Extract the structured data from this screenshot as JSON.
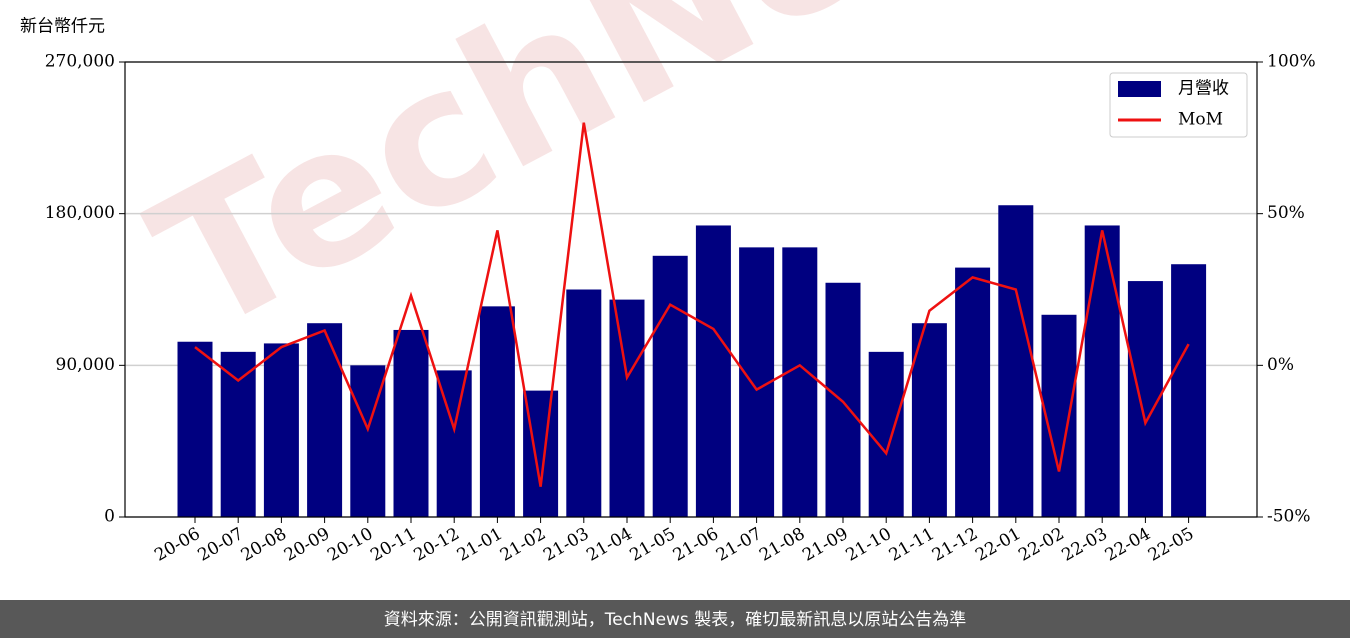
{
  "chart_data": {
    "type": "bar_line",
    "y_label": "新台幣仟元",
    "watermark": "TechNews",
    "footer": "資料來源：公開資訊觀測站，TechNews 製表，確切最新訊息以原站公告為準",
    "categories": [
      "20-06",
      "20-07",
      "20-08",
      "20-09",
      "20-10",
      "20-11",
      "20-12",
      "21-01",
      "21-02",
      "21-03",
      "21-04",
      "21-05",
      "21-06",
      "21-07",
      "21-08",
      "21-09",
      "21-10",
      "21-11",
      "21-12",
      "22-01",
      "22-02",
      "22-03",
      "22-04",
      "22-05"
    ],
    "series": [
      {
        "name": "月營收",
        "type": "bar",
        "color": "#000080",
        "values": [
          104000,
          98000,
          103000,
          115000,
          90000,
          111000,
          87000,
          125000,
          75000,
          135000,
          129000,
          155000,
          173000,
          160000,
          160000,
          139000,
          98000,
          115000,
          148000,
          185000,
          120000,
          173000,
          140000,
          150000
        ]
      },
      {
        "name": "MoM",
        "type": "line",
        "axis": "y2",
        "color": "#ee1111",
        "values": [
          6,
          -5,
          6,
          11.5,
          -21,
          23,
          -21,
          44.5,
          -40,
          80,
          -4,
          20,
          12,
          -8,
          0,
          -12,
          -29,
          18,
          29,
          25,
          -35,
          44.5,
          -19,
          7
        ]
      }
    ],
    "ylim": [
      0,
      270000
    ],
    "yticks": [
      0,
      {
        "value": 90000,
        "label": "90,000"
      },
      {
        "value": 180000,
        "label": "180,000"
      },
      {
        "value": 270000,
        "label": "270,000"
      }
    ],
    "y2lim": [
      -50,
      100
    ],
    "y2ticks": [
      {
        "value": -50,
        "label": "-50%"
      },
      {
        "value": 0,
        "label": "0%"
      },
      {
        "value": 50,
        "label": "50%"
      },
      {
        "value": 100,
        "label": "100%"
      }
    ],
    "grid": true,
    "legend": "upper right"
  }
}
